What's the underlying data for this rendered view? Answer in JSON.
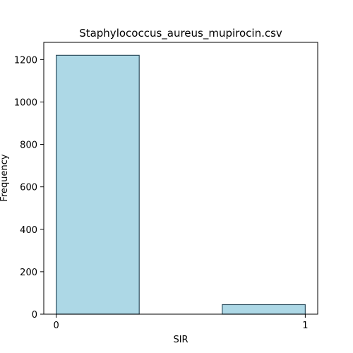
{
  "chart_data": {
    "type": "bar",
    "title": "Staphylococcus_aureus_mupirocin.csv",
    "xlabel": "SIR",
    "ylabel": "Frequency",
    "bins": [
      {
        "start": 0.0,
        "end": 0.3333,
        "value": 1220
      },
      {
        "start": 0.6667,
        "end": 1.0,
        "value": 45
      }
    ],
    "xlim": [
      -0.05,
      1.05
    ],
    "ylim": [
      0,
      1281
    ],
    "xticks": [
      0,
      1
    ],
    "xtick_labels": [
      "0",
      "1"
    ],
    "yticks": [
      0,
      200,
      400,
      600,
      800,
      1000,
      1200
    ],
    "ytick_labels": [
      "0",
      "200",
      "400",
      "600",
      "800",
      "1000",
      "1200"
    ],
    "bar_color": "#add8e6",
    "bar_edge_color": "#2f4f5f",
    "grid": false,
    "legend": "none"
  }
}
